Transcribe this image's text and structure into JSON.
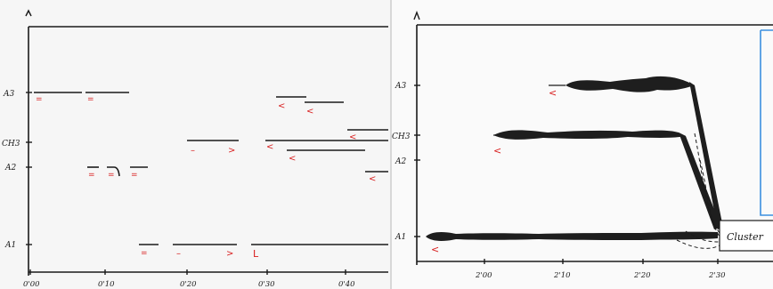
{
  "left_score": {
    "pitch_labels": {
      "a3": "A3",
      "ch3": "CH3",
      "a2": "A2",
      "a1": "A1"
    },
    "time_labels": [
      "0'00",
      "0'10",
      "0'20",
      "0'30",
      "0'40"
    ],
    "dynamics": {
      "equal": "=",
      "minus": "–",
      "crescendo": "<",
      "decrescendo": ">",
      "accent": "L"
    }
  },
  "right_score": {
    "pitch_labels": {
      "a3": "A3",
      "ch3": "CH3",
      "a2": "A2",
      "a1": "A1"
    },
    "time_labels": [
      "2'00",
      "2'10",
      "2'20",
      "2'30"
    ],
    "dynamic_mark": "<",
    "box_text": "Cluster"
  },
  "colors": {
    "ink": "#1a1a1a",
    "red_ink": "#d81e1e",
    "blue_ink": "#3a8fe0"
  }
}
